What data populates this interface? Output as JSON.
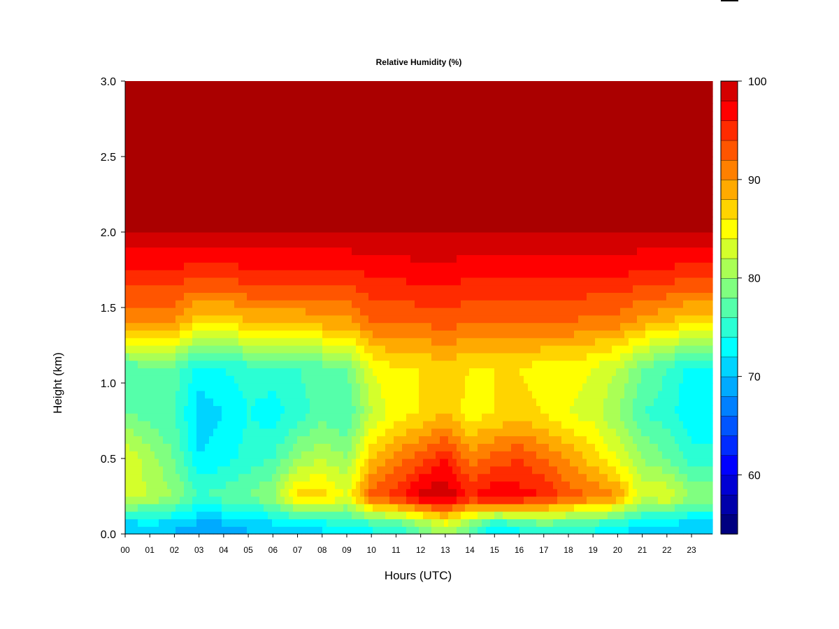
{
  "chart_data": {
    "type": "heatmap",
    "title": "Relative Humidity (%)",
    "xlabel": "Hours (UTC)",
    "ylabel": "Height (km)",
    "x_tick_labels": [
      "00",
      "01",
      "02",
      "03",
      "04",
      "05",
      "06",
      "07",
      "08",
      "09",
      "10",
      "11",
      "12",
      "13",
      "14",
      "15",
      "16",
      "17",
      "18",
      "19",
      "20",
      "21",
      "22",
      "23"
    ],
    "y_tick_labels": [
      "0.0",
      "0.5",
      "1.0",
      "1.5",
      "2.0",
      "2.5",
      "3.0"
    ],
    "xlim": [
      0,
      23.85
    ],
    "ylim": [
      0,
      3.0
    ],
    "hours": [
      0,
      1,
      2,
      3,
      4,
      5,
      6,
      7,
      8,
      9,
      10,
      11,
      12,
      13,
      14,
      15,
      16,
      17,
      18,
      19,
      20,
      21,
      22,
      23
    ],
    "heights_km": [
      0.05,
      0.25,
      0.5,
      0.8,
      1.1,
      1.4,
      1.7,
      2.0,
      2.5,
      3.0
    ],
    "values": [
      [
        70,
        83,
        84,
        78,
        76,
        91,
        95,
        100,
        100,
        100
      ],
      [
        71,
        82,
        81,
        77,
        78,
        90,
        95,
        100,
        100,
        100
      ],
      [
        70,
        80,
        78,
        76,
        77,
        90,
        95,
        100,
        100,
        100
      ],
      [
        69,
        76,
        72,
        71,
        73,
        86,
        94,
        100,
        100,
        100
      ],
      [
        69,
        77,
        73,
        72,
        74,
        86,
        94,
        100,
        100,
        100
      ],
      [
        70,
        78,
        75,
        74,
        75,
        88,
        95,
        100,
        100,
        100
      ],
      [
        71,
        80,
        76,
        73,
        75,
        88,
        95,
        100,
        100,
        100
      ],
      [
        71,
        87,
        80,
        75,
        76,
        88,
        95,
        100,
        100,
        100
      ],
      [
        72,
        87,
        82,
        77,
        77,
        89,
        95,
        100,
        100,
        100
      ],
      [
        73,
        84,
        80,
        76,
        78,
        89,
        95,
        100,
        100,
        100
      ],
      [
        74,
        93,
        88,
        82,
        84,
        92,
        96,
        100,
        100,
        100
      ],
      [
        75,
        95,
        91,
        85,
        86,
        92,
        96,
        100,
        100,
        100
      ],
      [
        78,
        99,
        93,
        86,
        86,
        92,
        97,
        100,
        100,
        100
      ],
      [
        82,
        100,
        96,
        88,
        87,
        93,
        97,
        100,
        100,
        100
      ],
      [
        78,
        96,
        91,
        85,
        86,
        92,
        96,
        100,
        100,
        100
      ],
      [
        72,
        98,
        93,
        86,
        86,
        92,
        96,
        100,
        100,
        100
      ],
      [
        74,
        97,
        94,
        87,
        86,
        92,
        96,
        100,
        100,
        100
      ],
      [
        76,
        96,
        92,
        86,
        85,
        92,
        96,
        100,
        100,
        100
      ],
      [
        75,
        93,
        90,
        84,
        85,
        92,
        96,
        100,
        100,
        100
      ],
      [
        74,
        92,
        87,
        83,
        84,
        91,
        96,
        100,
        100,
        100
      ],
      [
        73,
        90,
        84,
        80,
        82,
        91,
        96,
        100,
        100,
        100
      ],
      [
        71,
        83,
        80,
        76,
        78,
        89,
        95,
        100,
        100,
        100
      ],
      [
        71,
        84,
        78,
        75,
        76,
        88,
        95,
        100,
        100,
        100
      ],
      [
        70,
        80,
        75,
        72,
        73,
        86,
        94,
        100,
        100,
        100
      ]
    ],
    "colorbar": {
      "min": 54,
      "max": 100,
      "step": 2,
      "tick_labels": [
        "60",
        "70",
        "80",
        "90",
        "100"
      ],
      "colors": [
        "#000080",
        "#0000aa",
        "#0000d4",
        "#0000ff",
        "#002bff",
        "#0055ff",
        "#0080ff",
        "#00aaff",
        "#00d4ff",
        "#00ffff",
        "#2bffd4",
        "#55ffaa",
        "#80ff80",
        "#aaff55",
        "#d4ff2b",
        "#ffff00",
        "#ffd400",
        "#ffaa00",
        "#ff8000",
        "#ff5500",
        "#ff2b00",
        "#ff0000",
        "#d40000",
        "#aa0000",
        "#800000"
      ]
    },
    "grid": false
  }
}
